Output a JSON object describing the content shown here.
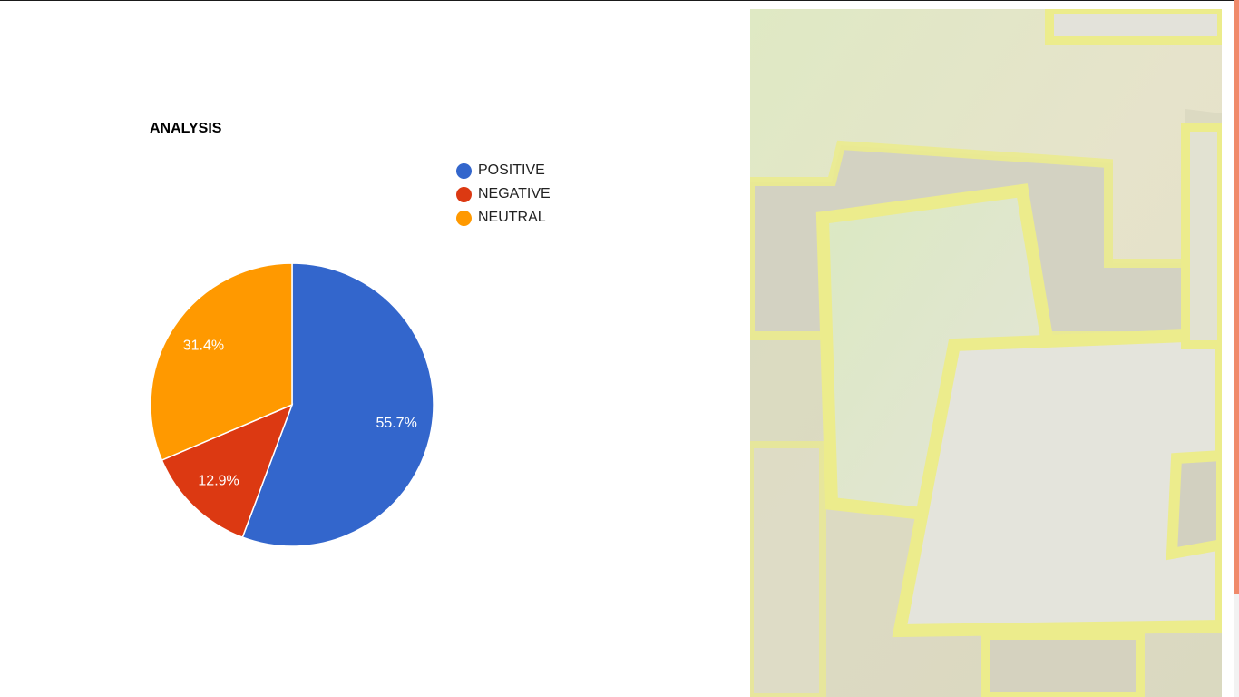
{
  "chart_data": {
    "type": "pie",
    "title": "ANALYSIS",
    "legend_position": "top-right",
    "slices": [
      {
        "label": "POSITIVE",
        "value": 55.7,
        "display": "55.7%",
        "color": "#3366cc"
      },
      {
        "label": "NEGATIVE",
        "value": 12.9,
        "display": "12.9%",
        "color": "#dc3912"
      },
      {
        "label": "NEUTRAL",
        "value": 31.4,
        "display": "31.4%",
        "color": "#ff9900"
      }
    ]
  },
  "decor": {
    "background_image": "abstract-yellow-frames-image"
  },
  "colors": {
    "scrollbar_thumb": "#f08a6a"
  }
}
